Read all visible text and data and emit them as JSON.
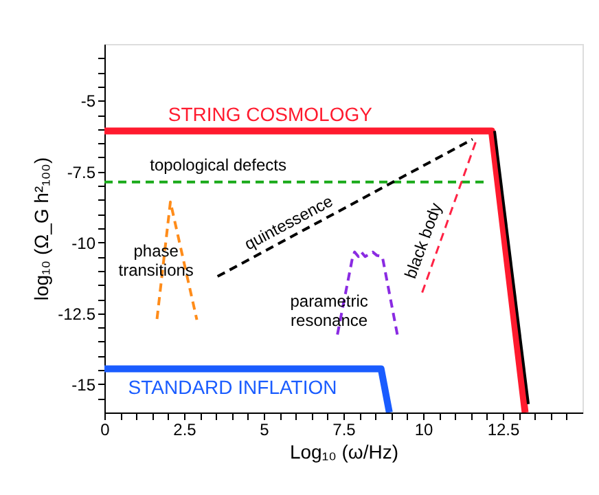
{
  "chart_data": {
    "type": "line",
    "xlabel": "Log₁₀ (ω/Hz)",
    "ylabel": "log₁₀ (Ω_G h²₁₀₀)",
    "xlim": [
      0,
      15
    ],
    "ylim": [
      -16,
      -3
    ],
    "xticks": [
      0,
      {
        "value": 0.5,
        "label": null
      },
      {
        "value": 1,
        "label": null
      },
      {
        "value": 1.5,
        "label": null
      },
      {
        "value": 2,
        "label": null
      },
      2.5,
      {
        "value": 3,
        "label": null
      },
      {
        "value": 3.5,
        "label": null
      },
      {
        "value": 4,
        "label": null
      },
      {
        "value": 4.5,
        "label": null
      },
      5,
      {
        "value": 5.5,
        "label": null
      },
      {
        "value": 6,
        "label": null
      },
      {
        "value": 6.5,
        "label": null
      },
      {
        "value": 7,
        "label": null
      },
      7.5,
      {
        "value": 8,
        "label": null
      },
      {
        "value": 8.5,
        "label": null
      },
      {
        "value": 9,
        "label": null
      },
      {
        "value": 9.5,
        "label": null
      },
      10,
      {
        "value": 10.5,
        "label": null
      },
      {
        "value": 11,
        "label": null
      },
      {
        "value": 11.5,
        "label": null
      },
      {
        "value": 12,
        "label": null
      },
      12.5,
      {
        "value": 13,
        "label": null
      },
      {
        "value": 13.5,
        "label": null
      },
      {
        "value": 14,
        "label": null
      },
      {
        "value": 14.5,
        "label": null
      }
    ],
    "yticks": [
      {
        "value": -15.5,
        "label": null
      },
      -15,
      {
        "value": -14.5,
        "label": null
      },
      {
        "value": -14,
        "label": null
      },
      {
        "value": -13.5,
        "label": null
      },
      {
        "value": -13,
        "label": null
      },
      -12.5,
      {
        "value": -12,
        "label": null
      },
      {
        "value": -11.5,
        "label": null
      },
      {
        "value": -11,
        "label": null
      },
      {
        "value": -10.5,
        "label": null
      },
      -10,
      {
        "value": -9.5,
        "label": null
      },
      {
        "value": -9,
        "label": null
      },
      {
        "value": -8.5,
        "label": null
      },
      {
        "value": -8,
        "label": null
      },
      -7.5,
      {
        "value": -7,
        "label": null
      },
      {
        "value": -6.5,
        "label": null
      },
      {
        "value": -6,
        "label": null
      },
      {
        "value": -5.5,
        "label": null
      },
      -5,
      {
        "value": -4.5,
        "label": null
      },
      {
        "value": -4,
        "label": null
      },
      {
        "value": -3.5,
        "label": null
      }
    ],
    "grid": false,
    "series": [
      {
        "color": "#ff1a2e",
        "line_style": "solid",
        "x": [
          0,
          12.15,
          13.2
        ],
        "values": [
          -6.07,
          -6.07,
          -16
        ]
      },
      {
        "color": "#000000",
        "line_style": "solid",
        "x": [
          12.24,
          13.3
        ],
        "values": [
          -6.07,
          -15.7
        ]
      },
      {
        "color": "#1aaa1a",
        "line_style": "dashed",
        "x": [
          0,
          11.9
        ],
        "values": [
          -7.87,
          -7.87
        ]
      },
      {
        "color": "#000000",
        "line_style": "dashed",
        "x": [
          3.55,
          11.55
        ],
        "values": [
          -11.2,
          -6.36
        ]
      },
      {
        "color": "#ff8c1a",
        "line_style": "dashed",
        "x": [
          1.65,
          2.07,
          2.9
        ],
        "values": [
          -12.7,
          -8.57,
          -12.73
        ]
      },
      {
        "color": "#8a2be2",
        "line_style": "dashed",
        "x": [
          7.31,
          7.79,
          7.85,
          7.97,
          8.06,
          8.18,
          8.3,
          8.42,
          8.55,
          8.72,
          9.19
        ],
        "values": [
          -13.25,
          -10.5,
          -10.34,
          -10.5,
          -10.34,
          -10.5,
          -10.42,
          -10.34,
          -10.46,
          -10.5,
          -13.25
        ]
      },
      {
        "color": "#ff2244",
        "line_style": "dashed",
        "x": [
          9.97,
          11.7
        ],
        "values": [
          -11.77,
          -6.3
        ]
      },
      {
        "color": "#1a5cff",
        "line_style": "solid",
        "x": [
          0,
          8.68,
          8.94
        ],
        "values": [
          -14.46,
          -14.46,
          -16
        ]
      }
    ],
    "annotations": [
      "STRING COSMOLOGY",
      "topological defects",
      "quintessence",
      "phase transitions",
      "parametric resonance",
      "black body",
      "STANDARD INFLATION"
    ]
  }
}
